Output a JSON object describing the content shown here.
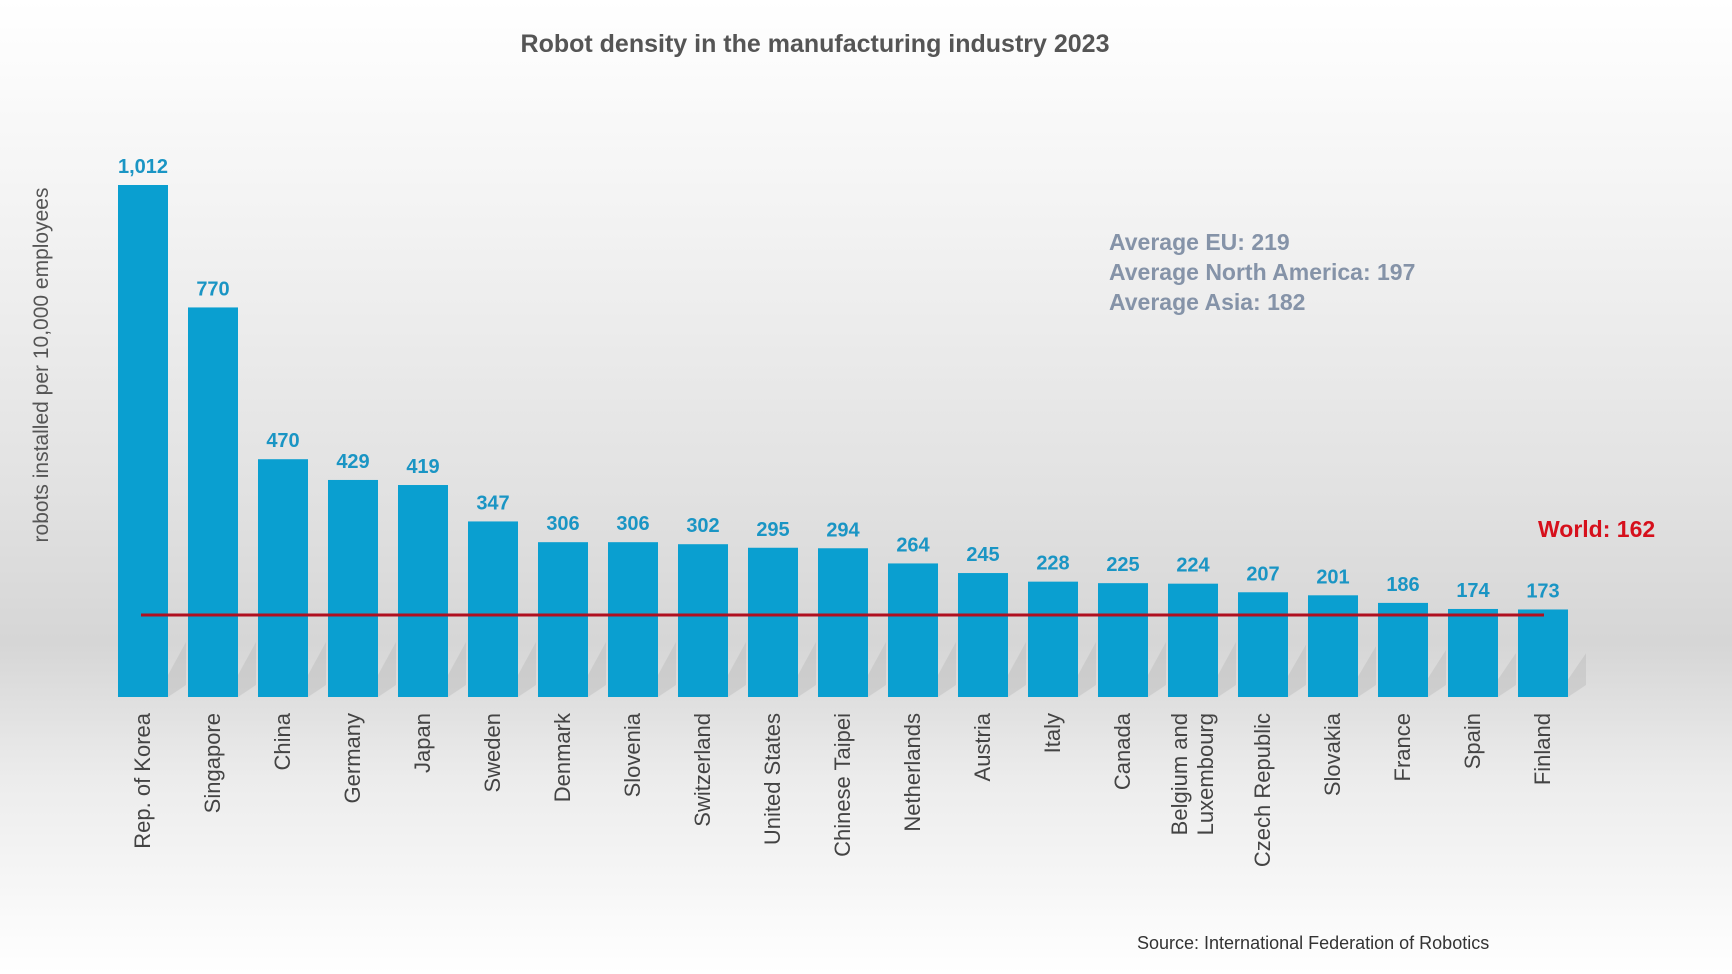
{
  "chart_data": {
    "type": "bar",
    "title": "Robot density in the manufacturing industry 2023",
    "ylabel": "robots installed per 10,000 employees",
    "xlabel": "",
    "categories": [
      "Rep. of Korea",
      "Singapore",
      "China",
      "Germany",
      "Japan",
      "Sweden",
      "Denmark",
      "Slovenia",
      "Switzerland",
      "United States",
      "Chinese Taipei",
      "Netherlands",
      "Austria",
      "Italy",
      "Canada",
      "Belgium and Luxembourg",
      "Czech Republic",
      "Slovakia",
      "France",
      "Spain",
      "Finland"
    ],
    "values": [
      1012,
      770,
      470,
      429,
      419,
      347,
      306,
      306,
      302,
      295,
      294,
      264,
      245,
      228,
      225,
      224,
      207,
      201,
      186,
      174,
      173
    ],
    "value_labels": [
      "1,012",
      "770",
      "470",
      "429",
      "419",
      "347",
      "306",
      "306",
      "302",
      "295",
      "294",
      "264",
      "245",
      "228",
      "225",
      "224",
      "207",
      "201",
      "186",
      "174",
      "173"
    ],
    "ylim": [
      0,
      1012
    ],
    "grid": false,
    "reference_line": {
      "label": "World: 162",
      "value": 162
    },
    "annotations": [
      "Average EU: 219",
      "Average North America: 197",
      "Average Asia: 182"
    ],
    "source": "Source: International Federation of Robotics",
    "colors": {
      "bar": "#0a9fd0",
      "value_label": "#1a95c4",
      "world_line": "#b01020",
      "world_label": "#d6101c",
      "annotation": "#8593a8",
      "title": "#555555"
    }
  }
}
